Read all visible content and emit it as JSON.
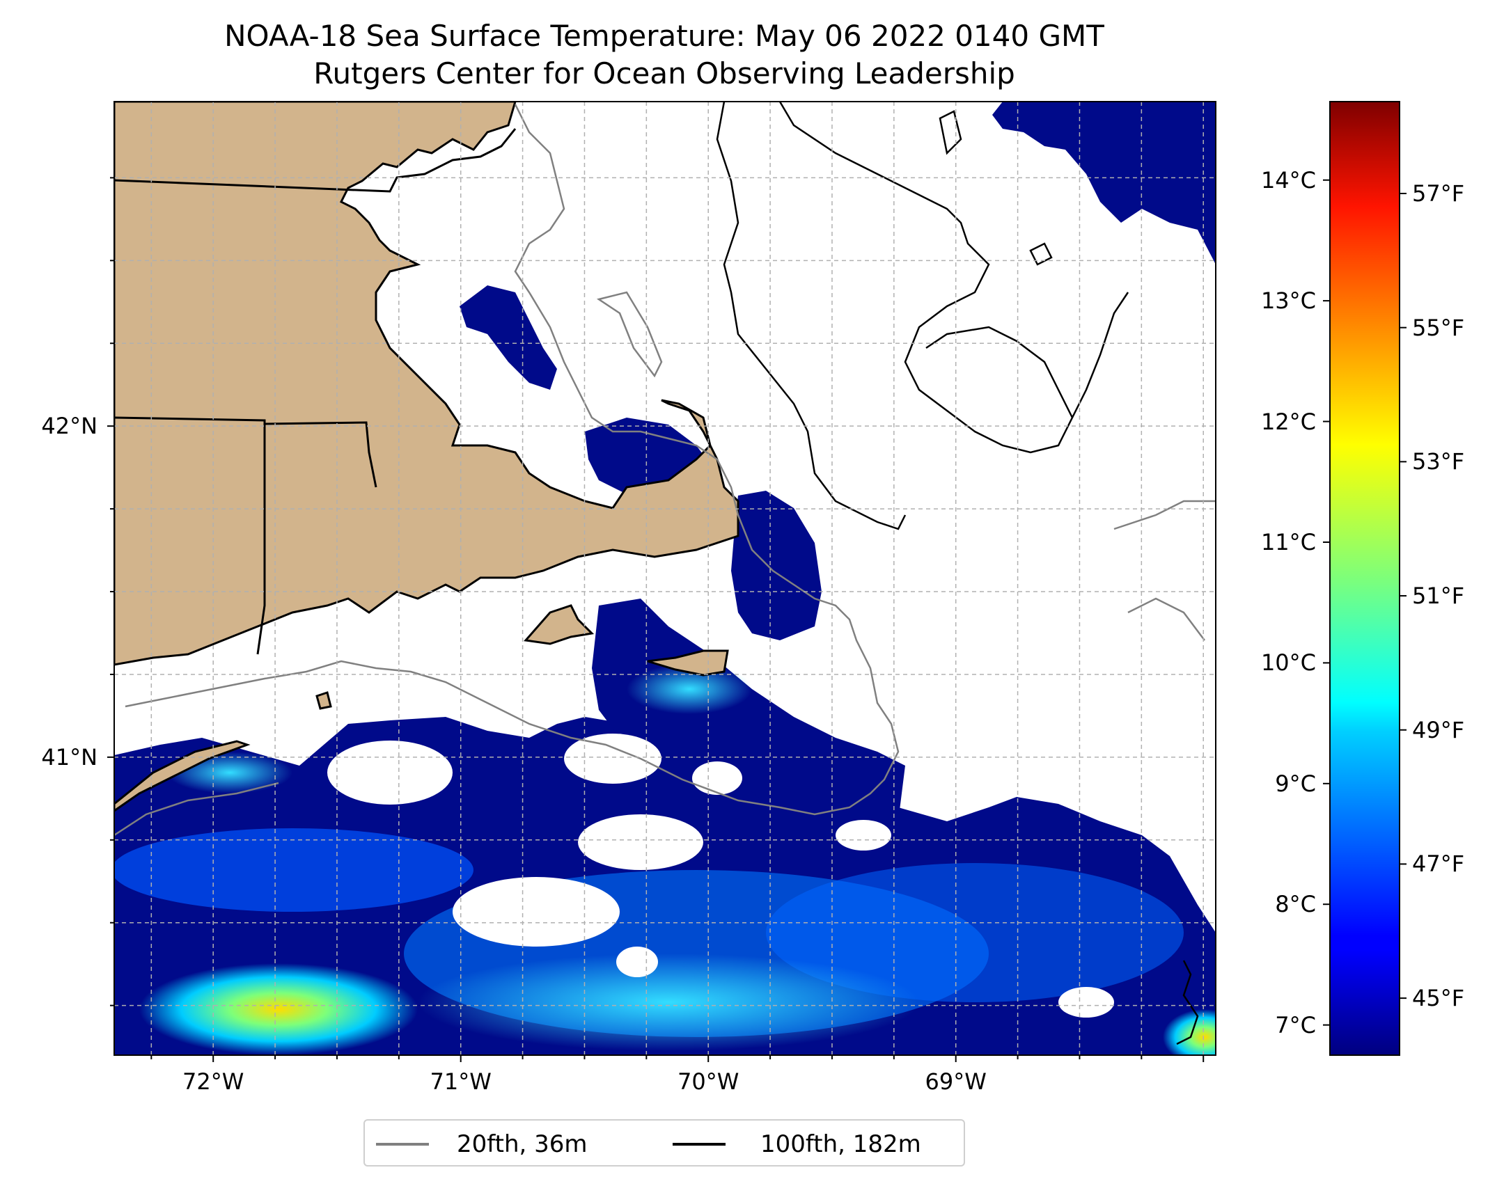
{
  "title": {
    "line1": "NOAA-18 Sea Surface Temperature: May 06 2022 0140 GMT",
    "line2": "Rutgers Center for Ocean Observing Leadership"
  },
  "map": {
    "lon_range": [
      -72.4,
      -67.95
    ],
    "lat_range": [
      40.1,
      42.98
    ],
    "x_ticks": [
      {
        "lon": -72,
        "label": "72°W"
      },
      {
        "lon": -71,
        "label": "71°W"
      },
      {
        "lon": -70,
        "label": "70°W"
      },
      {
        "lon": -69,
        "label": "69°W"
      }
    ],
    "y_ticks": [
      {
        "lat": 42,
        "label": "42°N"
      },
      {
        "lat": 41,
        "label": "41°N"
      }
    ],
    "land_color": "#d2b48c",
    "no_data_color": "#ffffff",
    "gridlines": true,
    "contours": [
      {
        "label": "20fth, 36m",
        "color": "#808080"
      },
      {
        "label": "100fth, 182m",
        "color": "#000000"
      }
    ]
  },
  "colorbar": {
    "cmap": "jet",
    "celsius_ticks": [
      {
        "value": 7,
        "label": "7°C"
      },
      {
        "value": 8,
        "label": "8°C"
      },
      {
        "value": 9,
        "label": "9°C"
      },
      {
        "value": 10,
        "label": "10°C"
      },
      {
        "value": 11,
        "label": "11°C"
      },
      {
        "value": 12,
        "label": "12°C"
      },
      {
        "value": 13,
        "label": "13°C"
      },
      {
        "value": 14,
        "label": "14°C"
      }
    ],
    "fahrenheit_ticks": [
      {
        "value": 45,
        "label": "45°F"
      },
      {
        "value": 47,
        "label": "47°F"
      },
      {
        "value": 49,
        "label": "49°F"
      },
      {
        "value": 51,
        "label": "51°F"
      },
      {
        "value": 53,
        "label": "53°F"
      },
      {
        "value": 55,
        "label": "55°F"
      },
      {
        "value": 57,
        "label": "57°F"
      }
    ],
    "range_celsius": [
      6.75,
      14.65
    ]
  },
  "legend": {
    "placement": "bottom-center",
    "items": [
      {
        "label": "20fth, 36m",
        "color": "#808080"
      },
      {
        "label": "100fth, 182m",
        "color": "#000000"
      }
    ]
  }
}
